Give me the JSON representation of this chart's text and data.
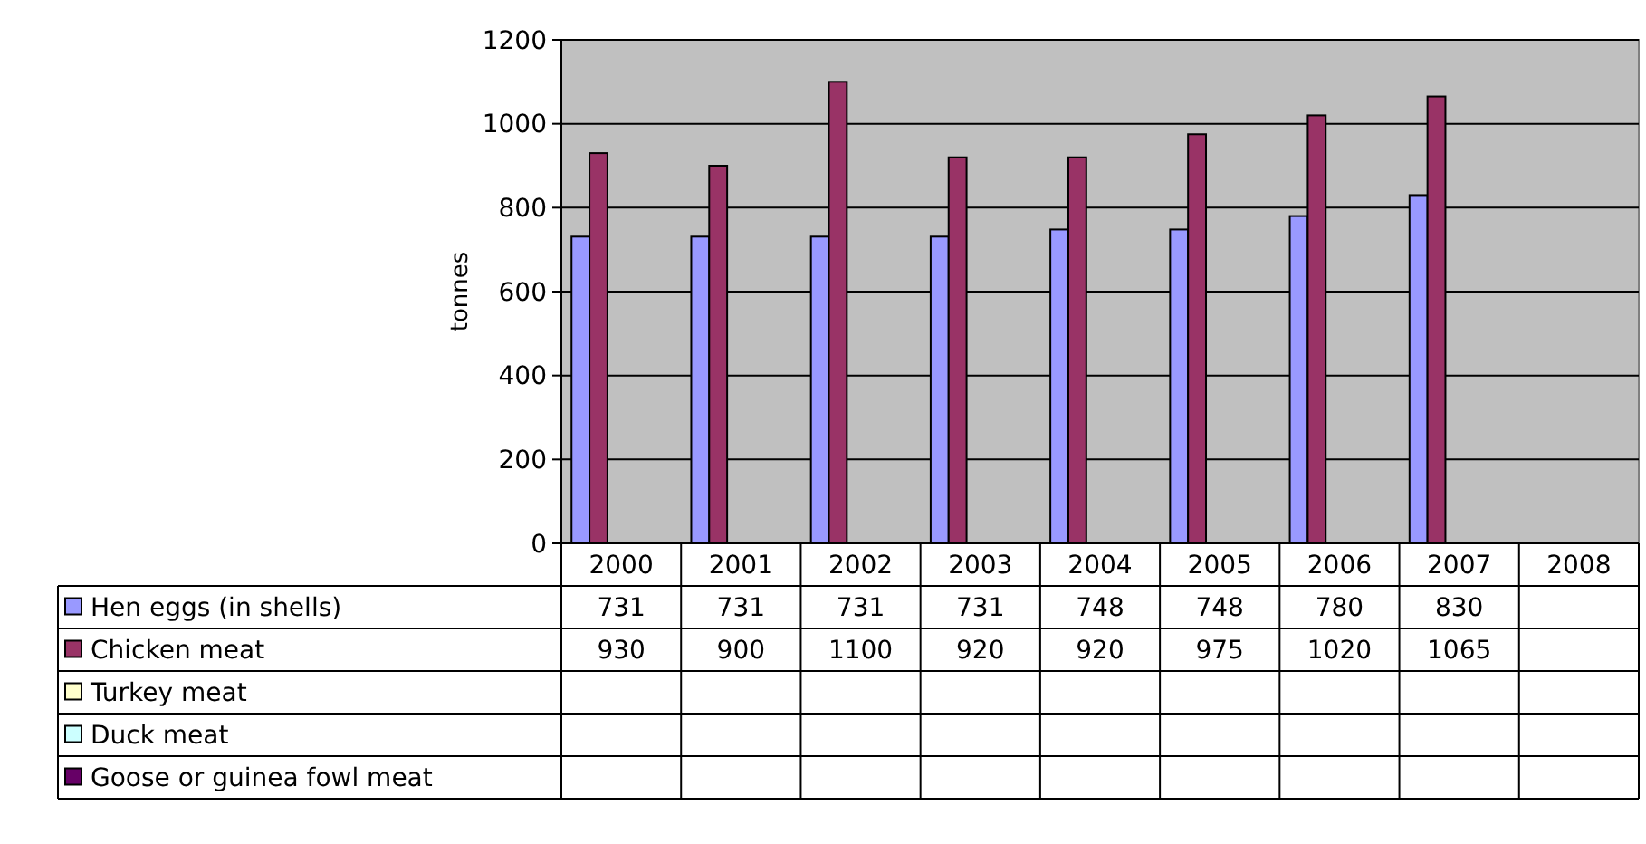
{
  "chart_data": {
    "type": "bar",
    "ylabel": "tonnes",
    "categories": [
      "2000",
      "2001",
      "2002",
      "2003",
      "2004",
      "2005",
      "2006",
      "2007",
      "2008"
    ],
    "series": [
      {
        "name": "Hen eggs (in shells)",
        "color": "#9999ff",
        "values": [
          731,
          731,
          731,
          731,
          748,
          748,
          780,
          830,
          null
        ]
      },
      {
        "name": "Chicken meat",
        "color": "#993366",
        "values": [
          930,
          900,
          1100,
          920,
          920,
          975,
          1020,
          1065,
          null
        ]
      },
      {
        "name": "Turkey meat",
        "color": "#ffffcc",
        "values": [
          null,
          null,
          null,
          null,
          null,
          null,
          null,
          null,
          null
        ]
      },
      {
        "name": "Duck meat",
        "color": "#ccffff",
        "values": [
          null,
          null,
          null,
          null,
          null,
          null,
          null,
          null,
          null
        ]
      },
      {
        "name": "Goose or guinea fowl meat",
        "color": "#660066",
        "values": [
          null,
          null,
          null,
          null,
          null,
          null,
          null,
          null,
          null
        ]
      }
    ],
    "ylim": [
      0,
      1200
    ],
    "yticks": [
      0,
      200,
      400,
      600,
      800,
      1000,
      1200
    ],
    "grid": "y",
    "legend": "bottom",
    "data_labels": true
  }
}
